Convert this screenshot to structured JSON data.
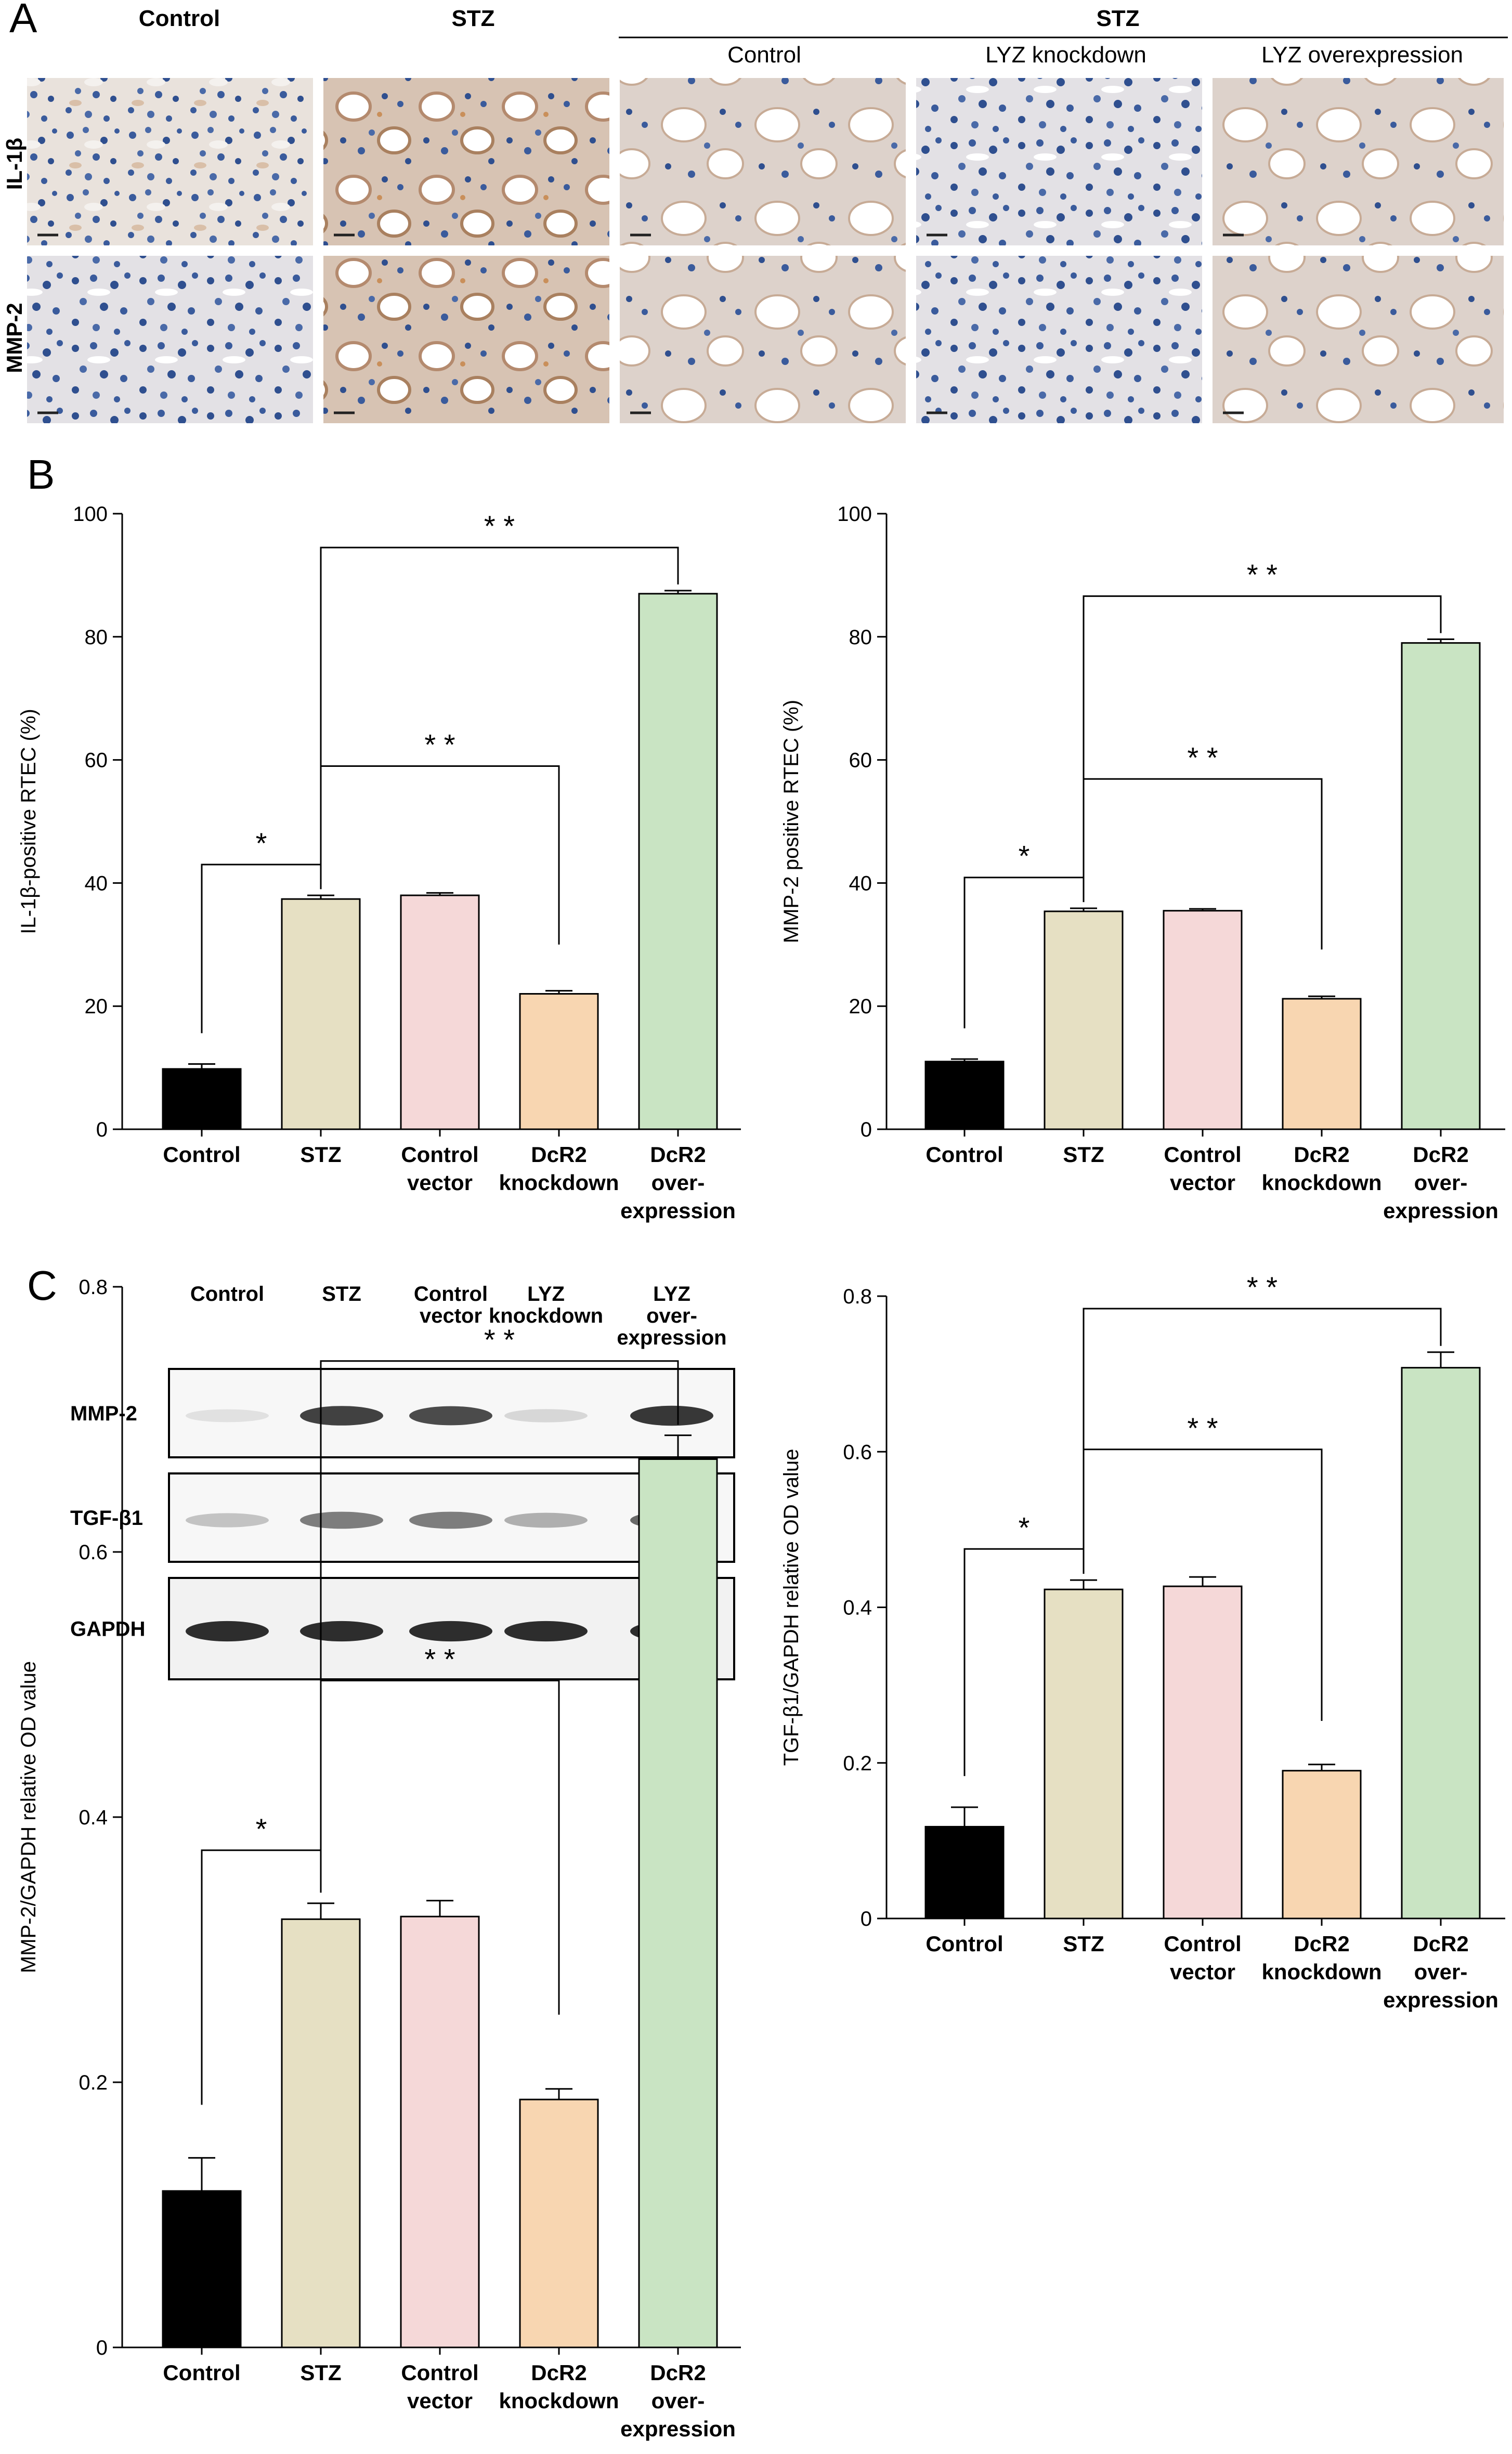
{
  "panel_letters": [
    "A",
    "B",
    "C"
  ],
  "panel_a": {
    "col_headers": [
      "Control",
      "STZ"
    ],
    "group_header": "STZ",
    "subgroups": [
      "Control",
      "LYZ knockdown",
      "LYZ overexpression"
    ],
    "row_labels": [
      "IL-1β",
      "MMP-2"
    ]
  },
  "panel_c_blot": {
    "lanes": [
      [
        "Control"
      ],
      [
        "STZ"
      ],
      [
        "Control",
        "vector"
      ],
      [
        "LYZ",
        "knockdown"
      ],
      [
        "LYZ",
        "over-",
        "expression"
      ]
    ],
    "proteins": [
      "MMP-2",
      "TGF-β1",
      "GAPDH"
    ],
    "intensities": [
      [
        0.05,
        0.85,
        0.8,
        0.1,
        0.9
      ],
      [
        0.2,
        0.55,
        0.55,
        0.3,
        0.65
      ],
      [
        0.95,
        0.95,
        0.95,
        0.95,
        0.95
      ]
    ]
  },
  "colors": {
    "Control": "#000000",
    "STZ": "#e6e0c3",
    "Control vector": "#f5d8d8",
    "DcR2 knockdown": "#f8d6b1",
    "DcR2 over-expression": "#c9e4c3"
  },
  "chart_data": [
    {
      "type": "bar",
      "categories": [
        [
          "Control"
        ],
        [
          "STZ"
        ],
        [
          "Control",
          "vector"
        ],
        [
          "DcR2",
          "knockdown"
        ],
        [
          "DcR2",
          "over-",
          "expression"
        ]
      ],
      "values": [
        9.8,
        37.4,
        38.0,
        22.0,
        87.0
      ],
      "errors": [
        0.8,
        0.6,
        0.4,
        0.5,
        0.5
      ],
      "ylabel": "IL-1β-positive RTEC (%)",
      "ylim": [
        0,
        100
      ],
      "yticks": [
        0,
        20,
        40,
        60,
        80,
        100
      ],
      "significance": [
        {
          "from": 0,
          "to": 1,
          "label": "*"
        },
        {
          "from": 1,
          "to": 3,
          "label": "* *"
        },
        {
          "from": 1,
          "to": 4,
          "label": "* *"
        }
      ]
    },
    {
      "type": "bar",
      "categories": [
        [
          "Control"
        ],
        [
          "STZ"
        ],
        [
          "Control",
          "vector"
        ],
        [
          "DcR2",
          "knockdown"
        ],
        [
          "DcR2",
          "over-",
          "expression"
        ]
      ],
      "values": [
        11.0,
        35.4,
        35.5,
        21.2,
        79.0
      ],
      "errors": [
        0.4,
        0.5,
        0.3,
        0.4,
        0.6
      ],
      "ylabel": "MMP-2 positive RTEC (%)",
      "ylim": [
        0,
        100
      ],
      "yticks": [
        0,
        20,
        40,
        60,
        80,
        100
      ],
      "significance": [
        {
          "from": 0,
          "to": 1,
          "label": "*"
        },
        {
          "from": 1,
          "to": 3,
          "label": "* *"
        },
        {
          "from": 1,
          "to": 4,
          "label": "* *"
        }
      ]
    },
    {
      "type": "bar",
      "categories": [
        [
          "Control"
        ],
        [
          "STZ"
        ],
        [
          "Control",
          "vector"
        ],
        [
          "DcR2",
          "knockdown"
        ],
        [
          "DcR2",
          "over-",
          "expression"
        ]
      ],
      "values": [
        0.118,
        0.323,
        0.325,
        0.187,
        0.67
      ],
      "errors": [
        0.025,
        0.012,
        0.012,
        0.008,
        0.018
      ],
      "ylabel": "MMP-2/GAPDH relative OD value",
      "ylim": [
        0,
        0.8
      ],
      "yticks": [
        0,
        0.2,
        0.4,
        0.6,
        0.8
      ],
      "significance": [
        {
          "from": 0,
          "to": 1,
          "label": "*"
        },
        {
          "from": 1,
          "to": 3,
          "label": "* *"
        },
        {
          "from": 1,
          "to": 4,
          "label": "* *"
        }
      ]
    },
    {
      "type": "bar",
      "categories": [
        [
          "Control"
        ],
        [
          "STZ"
        ],
        [
          "Control",
          "vector"
        ],
        [
          "DcR2",
          "knockdown"
        ],
        [
          "DcR2",
          "over-",
          "expression"
        ]
      ],
      "values": [
        0.118,
        0.423,
        0.427,
        0.19,
        0.708
      ],
      "errors": [
        0.025,
        0.012,
        0.012,
        0.008,
        0.02
      ],
      "ylabel": "TGF-β1/GAPDH relative OD value",
      "ylim": [
        0,
        0.8
      ],
      "yticks": [
        0,
        0.2,
        0.4,
        0.6,
        0.8
      ],
      "significance": [
        {
          "from": 0,
          "to": 1,
          "label": "*"
        },
        {
          "from": 1,
          "to": 3,
          "label": "* *"
        },
        {
          "from": 1,
          "to": 4,
          "label": "* *"
        }
      ]
    }
  ]
}
